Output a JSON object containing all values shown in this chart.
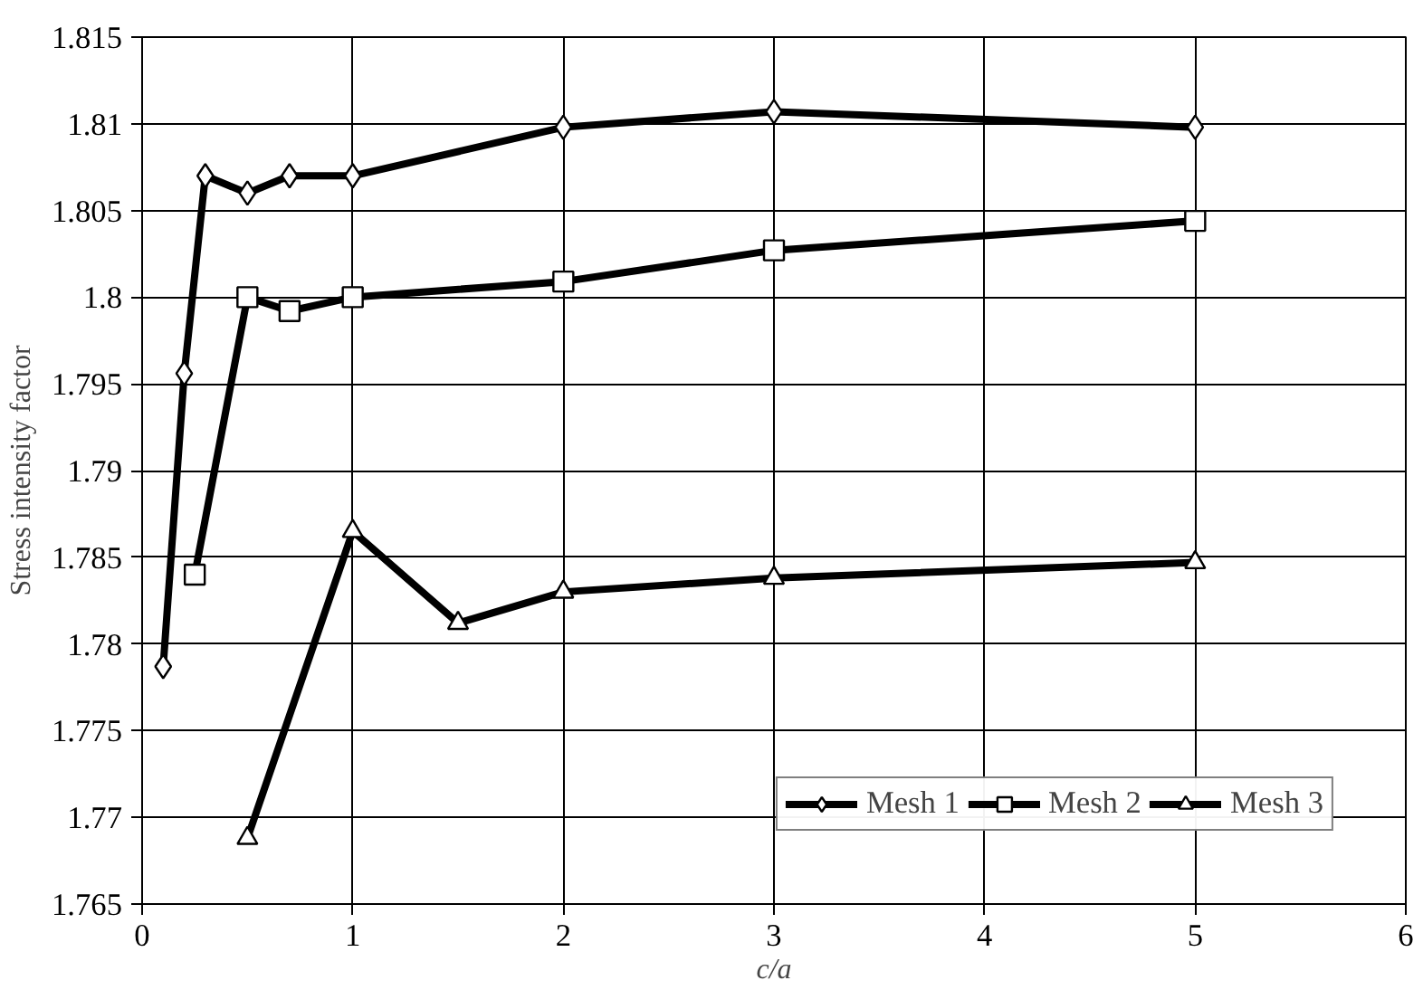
{
  "chart_data": {
    "type": "line",
    "xlabel": "c/a",
    "ylabel": "Stress intensity factor",
    "xlim": [
      0,
      6
    ],
    "xticks": [
      0,
      1,
      2,
      3,
      4,
      5,
      6
    ],
    "ylim": [
      1.765,
      1.815
    ],
    "yticks": [
      1.765,
      1.77,
      1.775,
      1.78,
      1.785,
      1.79,
      1.795,
      1.8,
      1.805,
      1.81,
      1.815
    ],
    "grid": true,
    "legend": "bottom right",
    "line_style": "solid",
    "series": [
      {
        "name": "Mesh 1",
        "color": "#000000",
        "marker": "diamond",
        "x": [
          0.1,
          0.2,
          0.3,
          0.5,
          0.7,
          1,
          2,
          3,
          5
        ],
        "values": [
          1.7787,
          1.7956,
          1.807,
          1.806,
          1.807,
          1.807,
          1.8098,
          1.8107,
          1.8098
        ]
      },
      {
        "name": "Mesh 2",
        "color": "#000000",
        "marker": "square",
        "x": [
          0.25,
          0.5,
          0.7,
          1,
          2,
          3,
          5
        ],
        "values": [
          1.784,
          1.8,
          1.7992,
          1.8,
          1.8009,
          1.8027,
          1.8044
        ]
      },
      {
        "name": "Mesh 3",
        "color": "#000000",
        "marker": "triangle",
        "x": [
          0.5,
          1,
          1.5,
          2,
          3,
          5
        ],
        "values": [
          1.7688,
          1.7865,
          1.7812,
          1.783,
          1.7838,
          1.7847
        ]
      }
    ]
  }
}
